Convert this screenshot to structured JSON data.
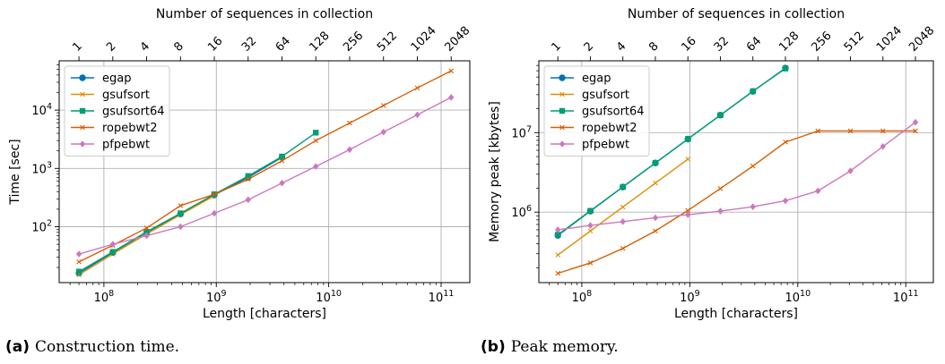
{
  "colors": {
    "egap": "#0173b2",
    "gsufsort": "#de8f05",
    "gsufsort64": "#029e73",
    "ropebwt2": "#d55e00",
    "pfpebwt": "#cc78bc",
    "grid": "#b0b0b0"
  },
  "captions": [
    {
      "label": "(a)",
      "text": "Construction time."
    },
    {
      "label": "(b)",
      "text": "Peak memory."
    }
  ],
  "chart_data": [
    {
      "type": "line",
      "x_scale": "log",
      "y_scale": "log",
      "grid": true,
      "legend_position": "top-left",
      "xlabel": "Length [characters]",
      "ylabel": "Time [sec]",
      "top_xlabel": "Number of sequences in collection",
      "xlim": [
        40000000,
        180000000000
      ],
      "ylim": [
        11,
        70000
      ],
      "x_ticks": [
        100000000,
        1000000000,
        10000000000,
        100000000000
      ],
      "x_tick_labels": [
        "10^8",
        "10^9",
        "10^10",
        "10^11"
      ],
      "y_ticks": [
        100,
        1000,
        10000
      ],
      "y_tick_labels": [
        "10^2",
        "10^3",
        "10^4"
      ],
      "top_ticks": [
        60000000,
        120000000,
        240000000,
        480000000,
        960000000,
        1920000000,
        3840000000,
        7680000000,
        15360000000,
        30720000000,
        61440000000,
        122880000000
      ],
      "top_tick_labels": [
        "1",
        "2",
        "4",
        "8",
        "16",
        "32",
        "64",
        "128",
        "256",
        "512",
        "1024",
        "2048"
      ],
      "series": [
        {
          "name": "egap",
          "color_key": "egap",
          "marker": "circle",
          "x": [
            60000000,
            120000000,
            240000000,
            480000000,
            960000000,
            1920000000,
            3840000000
          ],
          "y": [
            16,
            36,
            80,
            165,
            350,
            700,
            1550
          ]
        },
        {
          "name": "gsufsort",
          "color_key": "gsufsort",
          "marker": "x",
          "x": [
            60000000,
            120000000,
            240000000,
            480000000,
            960000000
          ],
          "y": [
            15,
            34,
            75,
            160,
            340
          ]
        },
        {
          "name": "gsufsort64",
          "color_key": "gsufsort64",
          "marker": "square",
          "x": [
            60000000,
            120000000,
            240000000,
            480000000,
            960000000,
            1920000000,
            3840000000,
            7680000000
          ],
          "y": [
            17,
            37,
            82,
            170,
            360,
            740,
            1600,
            4100
          ]
        },
        {
          "name": "ropebwt2",
          "color_key": "ropebwt2",
          "marker": "x",
          "x": [
            60000000,
            120000000,
            240000000,
            480000000,
            960000000,
            1920000000,
            3840000000,
            7680000000,
            15360000000,
            30720000000,
            61440000000,
            122880000000
          ],
          "y": [
            25,
            48,
            95,
            230,
            360,
            650,
            1350,
            3000,
            6000,
            12000,
            24000,
            47000
          ]
        },
        {
          "name": "pfpebwt",
          "color_key": "pfpebwt",
          "marker": "diamond",
          "x": [
            60000000,
            120000000,
            240000000,
            480000000,
            960000000,
            1920000000,
            3840000000,
            7680000000,
            15360000000,
            30720000000,
            61440000000,
            122880000000
          ],
          "y": [
            34,
            50,
            70,
            100,
            170,
            290,
            560,
            1080,
            2100,
            4200,
            8300,
            16500
          ]
        }
      ]
    },
    {
      "type": "line",
      "x_scale": "log",
      "y_scale": "log",
      "grid": true,
      "legend_position": "top-left",
      "xlabel": "Length [characters]",
      "ylabel": "Memory peak [kbytes]",
      "top_xlabel": "Number of sequences in collection",
      "xlim": [
        40000000,
        180000000000
      ],
      "ylim": [
        130000,
        80000000
      ],
      "x_ticks": [
        100000000,
        1000000000,
        10000000000,
        100000000000
      ],
      "x_tick_labels": [
        "10^8",
        "10^9",
        "10^10",
        "10^11"
      ],
      "y_ticks": [
        1000000,
        10000000
      ],
      "y_tick_labels": [
        "10^6",
        "10^7"
      ],
      "top_ticks": [
        60000000,
        120000000,
        240000000,
        480000000,
        960000000,
        1920000000,
        3840000000,
        7680000000,
        15360000000,
        30720000000,
        61440000000,
        122880000000
      ],
      "top_tick_labels": [
        "1",
        "2",
        "4",
        "8",
        "16",
        "32",
        "64",
        "128",
        "256",
        "512",
        "1024",
        "2048"
      ],
      "series": [
        {
          "name": "egap",
          "color_key": "egap",
          "marker": "circle",
          "x": [
            60000000,
            120000000,
            240000000,
            480000000,
            960000000,
            1920000000,
            3840000000,
            7680000000
          ],
          "y": [
            510000,
            1030000,
            2070000,
            4150000,
            8300000,
            16600000,
            33000000,
            65000000
          ]
        },
        {
          "name": "gsufsort",
          "color_key": "gsufsort",
          "marker": "x",
          "x": [
            60000000,
            120000000,
            240000000,
            480000000,
            960000000
          ],
          "y": [
            290000,
            580000,
            1160000,
            2320000,
            4640000
          ]
        },
        {
          "name": "gsufsort64",
          "color_key": "gsufsort64",
          "marker": "square",
          "x": [
            60000000,
            120000000,
            240000000,
            480000000,
            960000000,
            1920000000,
            3840000000,
            7680000000
          ],
          "y": [
            520000,
            1040000,
            2080000,
            4160000,
            8320000,
            16600000,
            33200000,
            64000000
          ]
        },
        {
          "name": "ropebwt2",
          "color_key": "ropebwt2",
          "marker": "x",
          "x": [
            60000000,
            120000000,
            240000000,
            480000000,
            960000000,
            1920000000,
            3840000000,
            7680000000,
            15360000000,
            30720000000,
            61440000000,
            122880000000
          ],
          "y": [
            170000,
            230000,
            350000,
            580000,
            1050000,
            1980000,
            3800000,
            7600000,
            10500000,
            10500000,
            10500000,
            10500000
          ]
        },
        {
          "name": "pfpebwt",
          "color_key": "pfpebwt",
          "marker": "diamond",
          "x": [
            60000000,
            120000000,
            240000000,
            480000000,
            960000000,
            1920000000,
            3840000000,
            7680000000,
            15360000000,
            30720000000,
            61440000000,
            122880000000
          ],
          "y": [
            600000,
            680000,
            760000,
            850000,
            930000,
            1030000,
            1170000,
            1390000,
            1850000,
            3300000,
            6700000,
            13500000
          ]
        }
      ]
    }
  ]
}
